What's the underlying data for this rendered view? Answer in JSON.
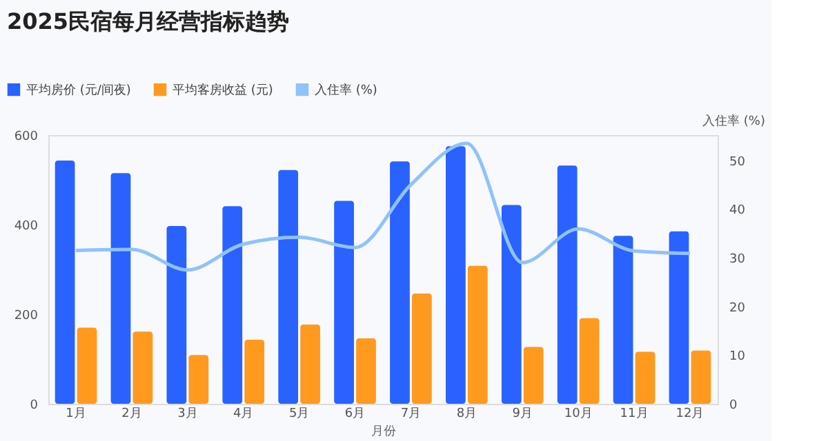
{
  "chart_data": {
    "type": "bar",
    "title": "2025民宿每月经营指标趋势",
    "xlabel": "月份",
    "y2label": "入住率 (%)",
    "categories": [
      "1月",
      "2月",
      "3月",
      "4月",
      "5月",
      "6月",
      "7月",
      "8月",
      "9月",
      "10月",
      "11月",
      "12月"
    ],
    "series": [
      {
        "name": "平均房价 (元/间夜)",
        "color": "#2962ff",
        "values": [
          543,
          515,
          397,
          441,
          522,
          453,
          541,
          575,
          444,
          532,
          375,
          385
        ]
      },
      {
        "name": "平均客房收益 (元)",
        "color": "#ff9a1f",
        "values": [
          170,
          161,
          109,
          143,
          177,
          146,
          246,
          308,
          127,
          191,
          116,
          119
        ]
      },
      {
        "name": "入住率 (%)",
        "type": "line",
        "axis": "y2",
        "color": "#90c2fb",
        "values": [
          31.5,
          31.7,
          27.5,
          32.8,
          34.2,
          32.1,
          45,
          53.5,
          29,
          35.9,
          31.4,
          30.9
        ]
      }
    ],
    "ylim": [
      0,
      600
    ],
    "yticks": [
      0,
      200,
      400,
      600
    ],
    "y2lim": [
      0,
      55.2
    ],
    "y2ticks": [
      0,
      10,
      20,
      30,
      40,
      50
    ],
    "legend": "top left"
  }
}
